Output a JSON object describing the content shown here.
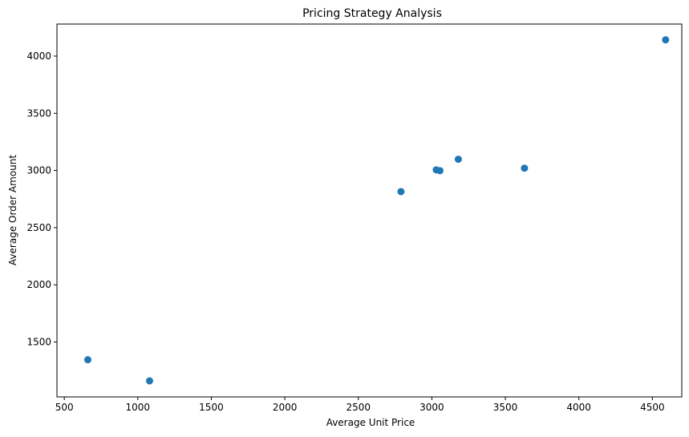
{
  "chart_data": {
    "type": "scatter",
    "title": "Pricing Strategy Analysis",
    "xlabel": "Average Unit Price",
    "ylabel": "Average Order Amount",
    "xlim": [
      450,
      4700
    ],
    "ylim": [
      1020,
      4280
    ],
    "x_ticks": [
      500,
      1000,
      1500,
      2000,
      2500,
      3000,
      3500,
      4000,
      4500
    ],
    "y_ticks": [
      1500,
      2000,
      2500,
      3000,
      3500,
      4000
    ],
    "grid": false,
    "marker_color": "#1f77b4",
    "points": [
      {
        "x": 660,
        "y": 1345
      },
      {
        "x": 1080,
        "y": 1160
      },
      {
        "x": 2790,
        "y": 2815
      },
      {
        "x": 3030,
        "y": 3005
      },
      {
        "x": 3055,
        "y": 2998
      },
      {
        "x": 3180,
        "y": 3098
      },
      {
        "x": 3630,
        "y": 3020
      },
      {
        "x": 4590,
        "y": 4142
      }
    ]
  }
}
